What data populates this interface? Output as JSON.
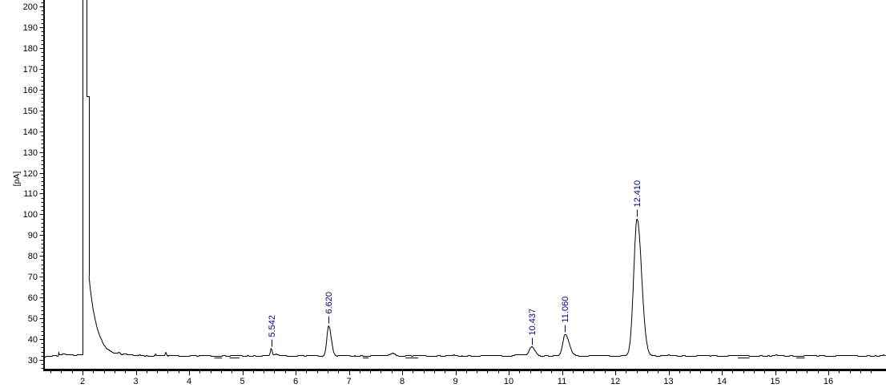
{
  "window": {
    "background": "#ffffff"
  },
  "chart_data": {
    "type": "line",
    "title": "",
    "xlabel": "",
    "ylabel": "[pA]",
    "trace_color": "#000000",
    "axis_color": "#000000",
    "peak_label_color": "#000080",
    "grid": "off",
    "legend": "none",
    "x_axis": {
      "min": 1.283,
      "max": 17.08,
      "minor_step": 0.2,
      "major_tick_values": [
        2,
        3,
        4,
        5,
        6,
        7,
        8,
        9,
        10,
        11,
        12,
        13,
        14,
        15,
        16
      ],
      "tick_labels": [
        "2",
        "3",
        "4",
        "5",
        "6",
        "7",
        "8",
        "9",
        "10",
        "11",
        "12",
        "13",
        "14",
        "15",
        "16"
      ]
    },
    "y_axis": {
      "min": 25.2,
      "max": 203.1,
      "unit": "pA",
      "minor_step": 2,
      "major_tick_values": [
        30,
        40,
        50,
        60,
        70,
        80,
        90,
        100,
        110,
        120,
        130,
        140,
        150,
        160,
        170,
        180,
        190,
        200
      ],
      "tick_labels": [
        "30",
        "40",
        "50",
        "60",
        "70",
        "80",
        "90",
        "100",
        "110",
        "120",
        "130",
        "140",
        "150",
        "160",
        "170",
        "180",
        "190",
        "200"
      ]
    },
    "baseline_pA": 32.15,
    "baseline_step": {
      "from": 1.555,
      "to": 2.005,
      "delta_pA": 0.85
    },
    "solvent_front": {
      "clipped": true,
      "rise_time": 2.005,
      "top_until": 2.08,
      "shelf_pA": 157,
      "shelf_until": 2.116,
      "drop_to_pA": 72,
      "decay_tau_min": 0.145
    },
    "peaks": [
      {
        "label": "5.542",
        "rt": 5.542,
        "apex_pA": 35.4,
        "sigma_left": 0.014,
        "sigma_right": 0.018
      },
      {
        "label": "6.620",
        "rt": 6.62,
        "apex_pA": 46.6,
        "sigma_left": 0.033,
        "sigma_right": 0.048
      },
      {
        "label": "10.437",
        "rt": 10.437,
        "apex_pA": 36.3,
        "sigma_left": 0.048,
        "sigma_right": 0.062
      },
      {
        "label": "11.060",
        "rt": 11.06,
        "apex_pA": 42.5,
        "sigma_left": 0.042,
        "sigma_right": 0.075
      },
      {
        "label": "12.410",
        "rt": 12.41,
        "apex_pA": 97.7,
        "sigma_left": 0.062,
        "sigma_right": 0.085
      }
    ],
    "unlabeled_features": [
      {
        "rt": 1.555,
        "height": 1.0,
        "sigma": 0.006
      },
      {
        "rt": 2.69,
        "height": 0.9,
        "sigma": 0.022
      },
      {
        "rt": 2.79,
        "height": 0.4,
        "sigma": 0.035
      },
      {
        "rt": 3.06,
        "height": 0.35,
        "sigma": 0.05
      },
      {
        "rt": 3.37,
        "height": 0.7,
        "sigma": 0.01
      },
      {
        "rt": 3.565,
        "height": 1.5,
        "sigma": 0.012
      },
      {
        "rt": 5.63,
        "height": 0.8,
        "sigma": 0.035
      },
      {
        "rt": 7.83,
        "height": 1.1,
        "sigma": 0.06
      },
      {
        "rt": 10.2,
        "height": 0.5,
        "sigma": 0.07
      }
    ],
    "baseline_marks_pA": 31.3,
    "baseline_marks": [
      {
        "t1": 4.47,
        "t2": 4.62
      },
      {
        "t1": 4.76,
        "t2": 4.95
      },
      {
        "t1": 7.26,
        "t2": 7.37
      },
      {
        "t1": 8.06,
        "t2": 8.3
      },
      {
        "t1": 14.3,
        "t2": 14.52
      },
      {
        "t1": 15.4,
        "t2": 15.56
      }
    ]
  }
}
